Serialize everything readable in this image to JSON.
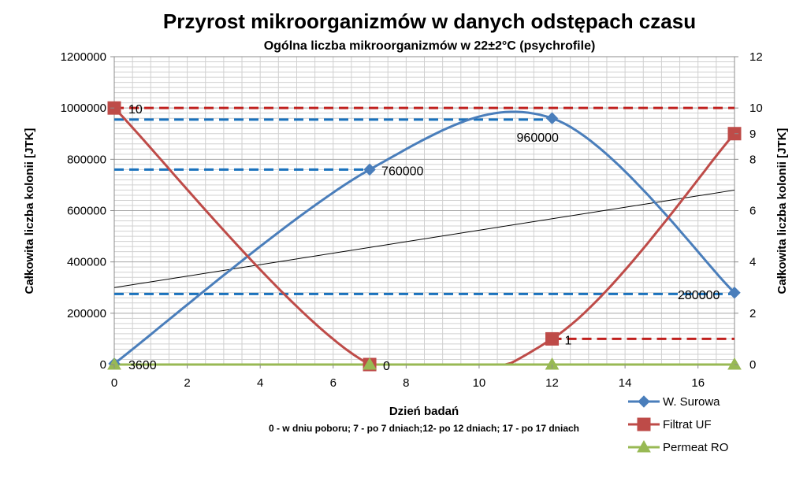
{
  "chart_data": {
    "type": "line",
    "title": "Przyrost mikroorganizmów w danych odstępach czasu",
    "subtitle": "Ogólna liczba mikroorganizmów w 22±2°C (psychrofile)",
    "xlabel": "Dzień badań",
    "note": "0 - w dniu poboru; 7 - po 7 dniach;12- po 12 dniach; 17 - po 17 dniach",
    "ylabel_left": "Całkowita liczba kolonii [JTK]",
    "ylabel_right": "Całkowita liczba kolonii [JTK]",
    "xlim": [
      0,
      17
    ],
    "x_ticks": [
      "0",
      "2",
      "4",
      "6",
      "8",
      "10",
      "12",
      "14",
      "16"
    ],
    "ylim_left": [
      0,
      1200000
    ],
    "y_left_ticks": [
      "0",
      "200000",
      "400000",
      "600000",
      "800000",
      "1000000",
      "1200000"
    ],
    "ylim_right": [
      0,
      12
    ],
    "y_right_ticks": [
      "0",
      "2",
      "4",
      "6",
      "8",
      "10",
      "12"
    ],
    "y_right_extra_ticks": [
      "9"
    ],
    "grid": true,
    "legend_position": "bottom-right",
    "series": [
      {
        "name": "W. Surowa",
        "axis": "left",
        "color": "#4a7ebb",
        "marker": "diamond",
        "x": [
          0,
          7,
          12,
          17
        ],
        "y": [
          3600,
          760000,
          960000,
          280000
        ],
        "data_labels": [
          "3600",
          "760000",
          "960000",
          "280000"
        ]
      },
      {
        "name": "Filtrat UF",
        "axis": "right",
        "color": "#be4b48",
        "marker": "square",
        "x": [
          0,
          7,
          12,
          17
        ],
        "y": [
          10,
          0,
          1,
          9
        ],
        "data_labels": [
          "10",
          "0",
          "1",
          ""
        ]
      },
      {
        "name": "Permeat RO",
        "axis": "right",
        "color": "#98b954",
        "marker": "triangle",
        "x": [
          0,
          7,
          12,
          17
        ],
        "y": [
          0,
          0,
          0,
          0
        ],
        "data_labels": []
      }
    ],
    "trendline": {
      "axis": "left",
      "color": "#000000",
      "x": [
        0,
        17
      ],
      "y": [
        300000,
        680000
      ]
    },
    "reference_lines": [
      {
        "axis": "left",
        "value": 955000,
        "x_end": 12,
        "color": "#1a72bd"
      },
      {
        "axis": "left",
        "value": 760000,
        "x_end": 7,
        "color": "#1a72bd"
      },
      {
        "axis": "left",
        "value": 275000,
        "x_end": 17,
        "color": "#1a72bd"
      },
      {
        "axis": "right",
        "value": 10,
        "x_end": 17,
        "color": "#c0201e"
      },
      {
        "axis": "right",
        "value": 1,
        "x_start": 12,
        "x_end": 17,
        "color": "#c0201e"
      }
    ]
  }
}
